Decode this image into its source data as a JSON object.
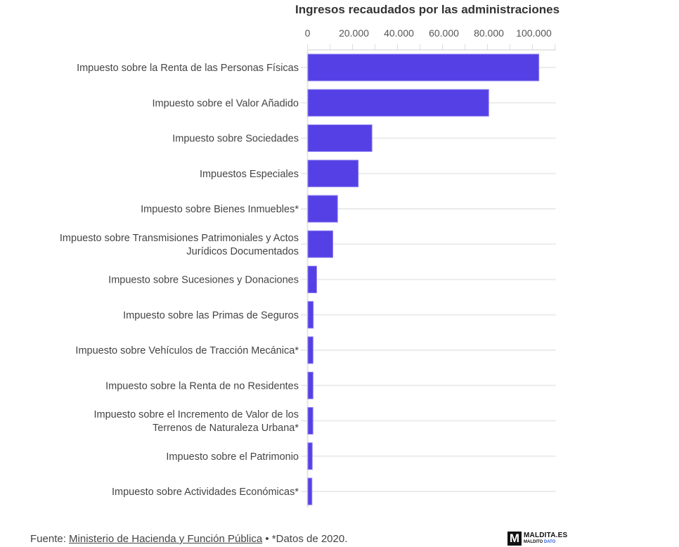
{
  "chart_data": {
    "type": "bar",
    "orientation": "horizontal",
    "title": "Ingresos recaudados por las administraciones",
    "xlabel": "",
    "ylabel": "",
    "xlim": [
      0,
      110000
    ],
    "grid": true,
    "tick_values": [
      0,
      20000,
      40000,
      60000,
      80000,
      100000
    ],
    "tick_labels": [
      "0",
      "20.000",
      "40.000",
      "60.000",
      "80.000",
      "100.000"
    ],
    "minor_tick_step": 10000,
    "bar_color": "#5540e6",
    "categories": [
      [
        "Impuesto sobre la Renta de las Personas Físicas"
      ],
      [
        "Impuesto sobre el Valor Añadido"
      ],
      [
        "Impuesto sobre Sociedades"
      ],
      [
        "Impuestos Especiales"
      ],
      [
        "Impuesto sobre Bienes Inmuebles*"
      ],
      [
        "Impuesto sobre Transmisiones Patrimoniales y Actos",
        "Jurídicos Documentados"
      ],
      [
        "Impuesto sobre Sucesiones y Donaciones"
      ],
      [
        "Impuesto sobre las Primas de Seguros"
      ],
      [
        "Impuesto sobre Vehículos de Tracción Mecánica*"
      ],
      [
        "Impuesto sobre la Renta de no Residentes"
      ],
      [
        "Impuesto sobre el Incremento de Valor de los",
        "Terrenos de Naturaleza Urbana*"
      ],
      [
        "Impuesto sobre el Patrimonio"
      ],
      [
        "Impuesto sobre Actividades Económicas*"
      ]
    ],
    "values": [
      102700,
      80400,
      28500,
      22400,
      13200,
      11100,
      3900,
      2400,
      2300,
      2300,
      2250,
      1950,
      1800
    ]
  },
  "footer": {
    "source_prefix": "Fuente: ",
    "source_link": "Ministerio de Hacienda y Función Pública",
    "separator": " • ",
    "note": "*Datos de 2020."
  },
  "logo": {
    "mark": "M",
    "name": "MALDITA.ES",
    "sub_a": "MALDITO ",
    "sub_b": "DATO"
  }
}
